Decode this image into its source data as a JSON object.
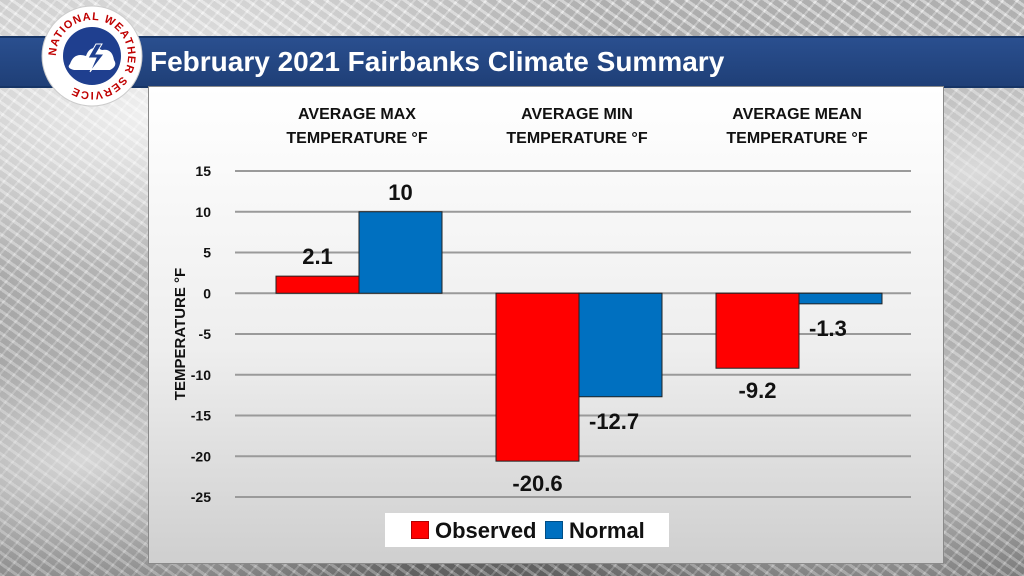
{
  "header": {
    "title": "February 2021 Fairbanks Climate Summary",
    "logo_text": "NATIONAL WEATHER SERVICE"
  },
  "colors": {
    "observed": "#ff0000",
    "normal": "#0070c0",
    "title_bar": "#1f3f77"
  },
  "chart_data": {
    "type": "bar",
    "title": "February 2021 Fairbanks Climate Summary",
    "categories": [
      [
        "AVERAGE MAX",
        "TEMPERATURE °F"
      ],
      [
        "AVERAGE MIN",
        "TEMPERATURE °F"
      ],
      [
        "AVERAGE MEAN",
        "TEMPERATURE °F"
      ]
    ],
    "series": [
      {
        "name": "Observed",
        "values": [
          2.1,
          -20.6,
          -9.2
        ],
        "labels": [
          "2.1",
          "-20.6",
          "-9.2"
        ]
      },
      {
        "name": "Normal",
        "values": [
          10,
          -12.7,
          -1.3
        ],
        "labels": [
          "10",
          "-12.7",
          "-1.3"
        ]
      }
    ],
    "xlabel": "",
    "ylabel": "TEMPERATURE °F",
    "ylim": [
      -25,
      15
    ],
    "yticks": [
      15,
      10,
      5,
      0,
      -5,
      -10,
      -15,
      -20,
      -25
    ],
    "grid": true,
    "legend": "bottom"
  }
}
